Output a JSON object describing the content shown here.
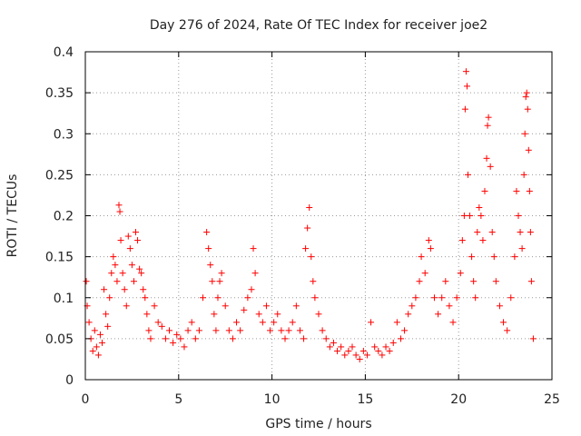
{
  "chart_data": {
    "type": "scatter",
    "title": "Day 276 of 2024, Rate Of TEC Index for receiver joe2",
    "xlabel": "GPS time / hours",
    "ylabel": "ROTI / TECUs",
    "xlim": [
      0,
      25
    ],
    "ylim": [
      0,
      0.4
    ],
    "x_ticks": [
      0,
      5,
      10,
      15,
      20,
      25
    ],
    "y_ticks": [
      0,
      0.05,
      0.1,
      0.15,
      0.2,
      0.25,
      0.3,
      0.35,
      0.4
    ],
    "x_tick_labels": [
      "0",
      "5",
      "10",
      "15",
      "20",
      "25"
    ],
    "y_tick_labels": [
      "0",
      "0.05",
      "0.1",
      "0.15",
      "0.2",
      "0.25",
      "0.3",
      "0.35",
      "0.4"
    ],
    "grid": true,
    "marker": "+",
    "color": "#ff0000",
    "series": [
      {
        "name": "ROTI",
        "points": [
          [
            0.05,
            0.12
          ],
          [
            0.1,
            0.09
          ],
          [
            0.2,
            0.07
          ],
          [
            0.3,
            0.05
          ],
          [
            0.4,
            0.035
          ],
          [
            0.5,
            0.06
          ],
          [
            0.6,
            0.04
          ],
          [
            0.7,
            0.03
          ],
          [
            0.8,
            0.055
          ],
          [
            0.9,
            0.045
          ],
          [
            1.0,
            0.11
          ],
          [
            1.1,
            0.08
          ],
          [
            1.2,
            0.065
          ],
          [
            1.3,
            0.1
          ],
          [
            1.4,
            0.13
          ],
          [
            1.5,
            0.15
          ],
          [
            1.6,
            0.14
          ],
          [
            1.7,
            0.12
          ],
          [
            1.8,
            0.213
          ],
          [
            1.85,
            0.205
          ],
          [
            1.9,
            0.17
          ],
          [
            2.0,
            0.13
          ],
          [
            2.1,
            0.11
          ],
          [
            2.2,
            0.09
          ],
          [
            2.3,
            0.175
          ],
          [
            2.4,
            0.16
          ],
          [
            2.5,
            0.14
          ],
          [
            2.6,
            0.12
          ],
          [
            2.7,
            0.18
          ],
          [
            2.8,
            0.17
          ],
          [
            2.9,
            0.135
          ],
          [
            3.0,
            0.13
          ],
          [
            3.1,
            0.11
          ],
          [
            3.2,
            0.1
          ],
          [
            3.3,
            0.08
          ],
          [
            3.4,
            0.06
          ],
          [
            3.5,
            0.05
          ],
          [
            3.7,
            0.09
          ],
          [
            3.9,
            0.07
          ],
          [
            4.1,
            0.065
          ],
          [
            4.3,
            0.05
          ],
          [
            4.5,
            0.06
          ],
          [
            4.7,
            0.045
          ],
          [
            4.9,
            0.055
          ],
          [
            5.1,
            0.05
          ],
          [
            5.3,
            0.04
          ],
          [
            5.5,
            0.06
          ],
          [
            5.7,
            0.07
          ],
          [
            5.9,
            0.05
          ],
          [
            6.1,
            0.06
          ],
          [
            6.3,
            0.1
          ],
          [
            6.5,
            0.18
          ],
          [
            6.6,
            0.16
          ],
          [
            6.7,
            0.14
          ],
          [
            6.8,
            0.12
          ],
          [
            6.9,
            0.08
          ],
          [
            7.0,
            0.06
          ],
          [
            7.1,
            0.1
          ],
          [
            7.2,
            0.12
          ],
          [
            7.3,
            0.13
          ],
          [
            7.5,
            0.09
          ],
          [
            7.7,
            0.06
          ],
          [
            7.9,
            0.05
          ],
          [
            8.1,
            0.07
          ],
          [
            8.3,
            0.06
          ],
          [
            8.5,
            0.085
          ],
          [
            8.7,
            0.1
          ],
          [
            8.9,
            0.11
          ],
          [
            9.0,
            0.16
          ],
          [
            9.1,
            0.13
          ],
          [
            9.3,
            0.08
          ],
          [
            9.5,
            0.07
          ],
          [
            9.7,
            0.09
          ],
          [
            9.9,
            0.06
          ],
          [
            10.1,
            0.07
          ],
          [
            10.3,
            0.08
          ],
          [
            10.5,
            0.06
          ],
          [
            10.7,
            0.05
          ],
          [
            10.9,
            0.06
          ],
          [
            11.1,
            0.07
          ],
          [
            11.3,
            0.09
          ],
          [
            11.5,
            0.06
          ],
          [
            11.7,
            0.05
          ],
          [
            11.8,
            0.16
          ],
          [
            11.9,
            0.185
          ],
          [
            12.0,
            0.21
          ],
          [
            12.1,
            0.15
          ],
          [
            12.2,
            0.12
          ],
          [
            12.3,
            0.1
          ],
          [
            12.5,
            0.08
          ],
          [
            12.7,
            0.06
          ],
          [
            12.9,
            0.05
          ],
          [
            13.1,
            0.04
          ],
          [
            13.3,
            0.045
          ],
          [
            13.5,
            0.035
          ],
          [
            13.7,
            0.04
          ],
          [
            13.9,
            0.03
          ],
          [
            14.1,
            0.035
          ],
          [
            14.3,
            0.04
          ],
          [
            14.5,
            0.03
          ],
          [
            14.7,
            0.025
          ],
          [
            14.9,
            0.035
          ],
          [
            15.1,
            0.03
          ],
          [
            15.3,
            0.07
          ],
          [
            15.5,
            0.04
          ],
          [
            15.7,
            0.035
          ],
          [
            15.9,
            0.03
          ],
          [
            16.1,
            0.04
          ],
          [
            16.3,
            0.035
          ],
          [
            16.5,
            0.045
          ],
          [
            16.7,
            0.07
          ],
          [
            16.9,
            0.05
          ],
          [
            17.1,
            0.06
          ],
          [
            17.3,
            0.08
          ],
          [
            17.5,
            0.09
          ],
          [
            17.7,
            0.1
          ],
          [
            17.9,
            0.12
          ],
          [
            18.0,
            0.15
          ],
          [
            18.2,
            0.13
          ],
          [
            18.4,
            0.17
          ],
          [
            18.5,
            0.16
          ],
          [
            18.7,
            0.1
          ],
          [
            18.9,
            0.08
          ],
          [
            19.1,
            0.1
          ],
          [
            19.3,
            0.12
          ],
          [
            19.5,
            0.09
          ],
          [
            19.7,
            0.07
          ],
          [
            19.9,
            0.1
          ],
          [
            20.1,
            0.13
          ],
          [
            20.2,
            0.17
          ],
          [
            20.3,
            0.2
          ],
          [
            20.35,
            0.33
          ],
          [
            20.4,
            0.376
          ],
          [
            20.45,
            0.358
          ],
          [
            20.5,
            0.25
          ],
          [
            20.6,
            0.2
          ],
          [
            20.7,
            0.15
          ],
          [
            20.8,
            0.12
          ],
          [
            20.9,
            0.1
          ],
          [
            21.0,
            0.18
          ],
          [
            21.1,
            0.21
          ],
          [
            21.2,
            0.2
          ],
          [
            21.3,
            0.17
          ],
          [
            21.4,
            0.23
          ],
          [
            21.5,
            0.27
          ],
          [
            21.55,
            0.31
          ],
          [
            21.6,
            0.32
          ],
          [
            21.7,
            0.26
          ],
          [
            21.8,
            0.18
          ],
          [
            21.9,
            0.15
          ],
          [
            22.0,
            0.12
          ],
          [
            22.2,
            0.09
          ],
          [
            22.4,
            0.07
          ],
          [
            22.6,
            0.06
          ],
          [
            22.8,
            0.1
          ],
          [
            23.0,
            0.15
          ],
          [
            23.1,
            0.23
          ],
          [
            23.2,
            0.2
          ],
          [
            23.3,
            0.18
          ],
          [
            23.4,
            0.16
          ],
          [
            23.5,
            0.25
          ],
          [
            23.55,
            0.3
          ],
          [
            23.6,
            0.345
          ],
          [
            23.65,
            0.35
          ],
          [
            23.7,
            0.33
          ],
          [
            23.75,
            0.28
          ],
          [
            23.8,
            0.23
          ],
          [
            23.85,
            0.18
          ],
          [
            23.9,
            0.12
          ],
          [
            24.0,
            0.05
          ]
        ]
      }
    ]
  }
}
